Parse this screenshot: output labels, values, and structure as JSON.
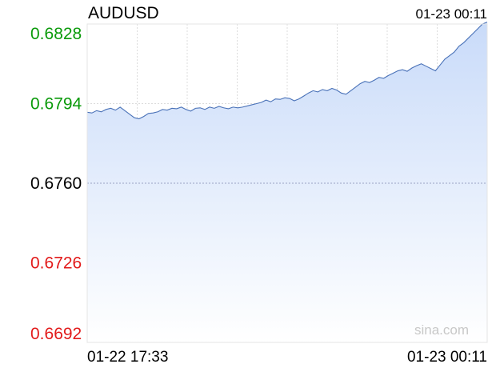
{
  "header": {
    "symbol": "AUDUSD",
    "timestamp": "01-23 00:11"
  },
  "watermark": "sina.com",
  "colors": {
    "line": "#4a72b8",
    "fill_top": "#c9dbf9",
    "fill_bottom": "#ffffff",
    "grid": "#dcdcdc",
    "midline": "#9aa4c4",
    "up": "#0a9a0a",
    "flat": "#000000",
    "down": "#e21b1b"
  },
  "chart_data": {
    "type": "area",
    "title": "AUDUSD",
    "ylim": [
      0.6692,
      0.6828
    ],
    "reference_value": 0.676,
    "y_ticks": [
      {
        "label": "0.6828",
        "value": 0.6828,
        "trend": "up"
      },
      {
        "label": "0.6794",
        "value": 0.6794,
        "trend": "up"
      },
      {
        "label": "0.6760",
        "value": 0.676,
        "trend": "flat"
      },
      {
        "label": "0.6726",
        "value": 0.6726,
        "trend": "down"
      },
      {
        "label": "0.6692",
        "value": 0.6692,
        "trend": "down"
      }
    ],
    "x_ticks": [
      "01-22 17:33",
      "01-23 00:11"
    ],
    "grid": true,
    "series": [
      {
        "values": [
          0.67903,
          0.679,
          0.6791,
          0.67905,
          0.67915,
          0.6792,
          0.67912,
          0.67925,
          0.6791,
          0.67895,
          0.6788,
          0.67875,
          0.67885,
          0.67898,
          0.679,
          0.67905,
          0.67915,
          0.67912,
          0.6792,
          0.67918,
          0.67925,
          0.67915,
          0.67908,
          0.6792,
          0.67922,
          0.67915,
          0.67925,
          0.6792,
          0.67928,
          0.67922,
          0.67918,
          0.67925,
          0.67922,
          0.67925,
          0.6793,
          0.67935,
          0.6794,
          0.67945,
          0.67955,
          0.67948,
          0.6796,
          0.67958,
          0.67965,
          0.67962,
          0.67952,
          0.6796,
          0.67972,
          0.67985,
          0.67995,
          0.6799,
          0.68,
          0.67995,
          0.68005,
          0.67998,
          0.67985,
          0.6798,
          0.67995,
          0.6801,
          0.68025,
          0.68035,
          0.6803,
          0.6804,
          0.68052,
          0.68048,
          0.6806,
          0.6807,
          0.6808,
          0.68085,
          0.68078,
          0.68092,
          0.68102,
          0.6811,
          0.681,
          0.6809,
          0.6808,
          0.68105,
          0.6813,
          0.68145,
          0.6816,
          0.68185,
          0.682,
          0.6822,
          0.6824,
          0.6826,
          0.6828,
          0.68288
        ]
      }
    ]
  }
}
